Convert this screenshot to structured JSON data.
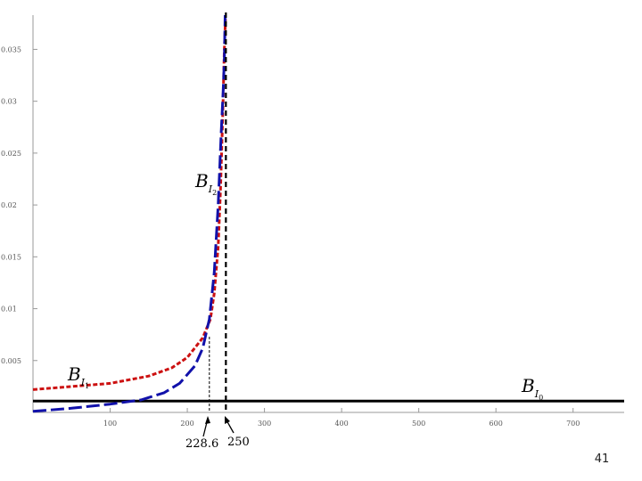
{
  "chart_data": {
    "type": "line",
    "title": "",
    "xlabel": "",
    "ylabel": "",
    "xlim": [
      0,
      770
    ],
    "ylim": [
      0,
      0.0383
    ],
    "x_ticks": [
      100,
      200,
      300,
      400,
      500,
      600,
      700
    ],
    "x_tick_labels": [
      "100",
      "200",
      "300",
      "400",
      "500",
      "600",
      "700"
    ],
    "y_ticks": [
      0.005,
      0.01,
      0.015,
      0.02,
      0.025,
      0.03,
      0.035
    ],
    "y_tick_labels": [
      "0.005",
      "0.01",
      "0.015",
      "0.02",
      "0.025",
      "0.03",
      "0.035"
    ],
    "grid": false,
    "series": [
      {
        "label_main": "B",
        "label_sub": "I",
        "label_subsub": "0",
        "color": "#000000",
        "style": "solid",
        "x": [
          0,
          770
        ],
        "y": [
          0.0011,
          0.0011
        ]
      },
      {
        "label_main": "B",
        "label_sub": "I",
        "label_subsub": "1",
        "color": "#cc1111",
        "style": "dashed",
        "x": [
          0,
          50,
          100,
          150,
          180,
          200,
          220,
          230,
          235,
          240,
          243,
          246,
          248,
          249.5
        ],
        "y": [
          0.0022,
          0.0025,
          0.0028,
          0.0035,
          0.0043,
          0.0053,
          0.0072,
          0.009,
          0.0115,
          0.016,
          0.0215,
          0.029,
          0.035,
          0.038
        ]
      },
      {
        "label_main": "B",
        "label_sub": "I",
        "label_subsub": "2",
        "color": "#1111aa",
        "style": "long-dashed",
        "x": [
          0,
          50,
          100,
          140,
          170,
          190,
          210,
          220,
          228.6,
          235,
          240,
          244,
          246.5,
          248,
          249
        ],
        "y": [
          0.0001,
          0.0004,
          0.0008,
          0.0012,
          0.0019,
          0.0028,
          0.0045,
          0.0062,
          0.009,
          0.0135,
          0.02,
          0.027,
          0.031,
          0.034,
          0.0383
        ]
      }
    ],
    "vlines": [
      {
        "x": 228.6,
        "style": "dashed-thin",
        "label": "228.6"
      },
      {
        "x": 250,
        "style": "dashed-thick",
        "label": "250"
      }
    ],
    "label_positions_data": {
      "BI0": [
        650,
        0.0015
      ],
      "BI1": [
        47,
        0.0028
      ],
      "BI2": [
        215,
        0.0214
      ]
    }
  },
  "page_number": "41"
}
